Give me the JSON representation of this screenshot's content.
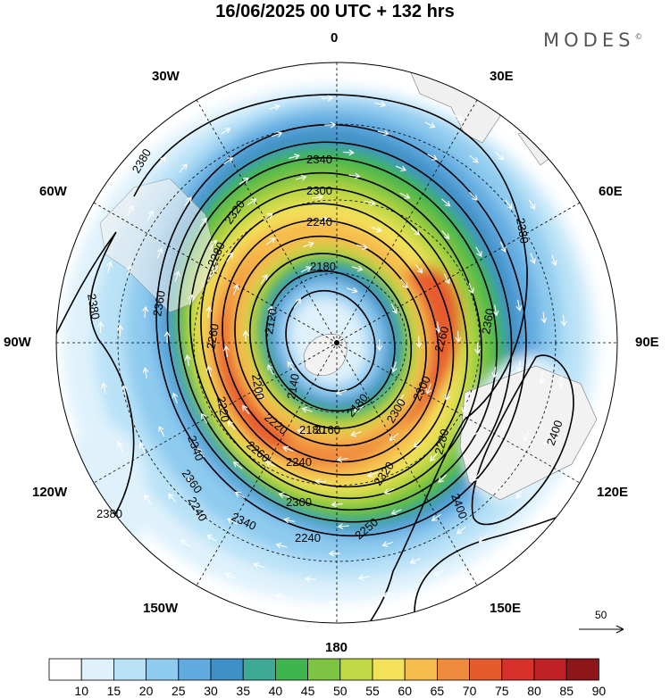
{
  "header": {
    "title": "16/06/2025  00 UTC  + 132 hrs",
    "brand": "MODES",
    "brand_mark": "©"
  },
  "map": {
    "projection": "polar-stereographic-south",
    "longitude_labels": {
      "lon_0": "0",
      "lon_30e": "30E",
      "lon_60e": "60E",
      "lon_90e": "90E",
      "lon_120e": "120E",
      "lon_150e": "150E",
      "lon_180": "180",
      "lon_150w": "150W",
      "lon_120w": "120W",
      "lon_90w": "90W",
      "lon_60w": "60W",
      "lon_30w": "30W"
    },
    "contour_labels": [
      "2380",
      "2340",
      "2300",
      "2240",
      "2320",
      "2280",
      "2180",
      "2360",
      "2120",
      "2140",
      "2260",
      "2220",
      "2200",
      "2240",
      "2260",
      "2220",
      "2160",
      "2180",
      "2340",
      "2300",
      "2360",
      "2380",
      "2400",
      "2300",
      "2250",
      "2320",
      "2260",
      "2180",
      "2240",
      "2300",
      "2340",
      "2380",
      "2360",
      "2280",
      "2240",
      "2400",
      "2380"
    ],
    "reference_vector_label": "50"
  },
  "colorbar": {
    "ticks": [
      "10",
      "15",
      "20",
      "25",
      "30",
      "35",
      "40",
      "45",
      "50",
      "55",
      "60",
      "65",
      "70",
      "75",
      "80",
      "85",
      "90"
    ],
    "colors": [
      "#ffffff",
      "#dff2fc",
      "#b9e2f7",
      "#8fcbef",
      "#62abe0",
      "#3f8fc8",
      "#3ea994",
      "#3fb54e",
      "#7dc443",
      "#bfd843",
      "#f3e15a",
      "#f6bb4d",
      "#f08a3c",
      "#e65b2e",
      "#d8302a",
      "#bf2126",
      "#8e1518"
    ]
  }
}
